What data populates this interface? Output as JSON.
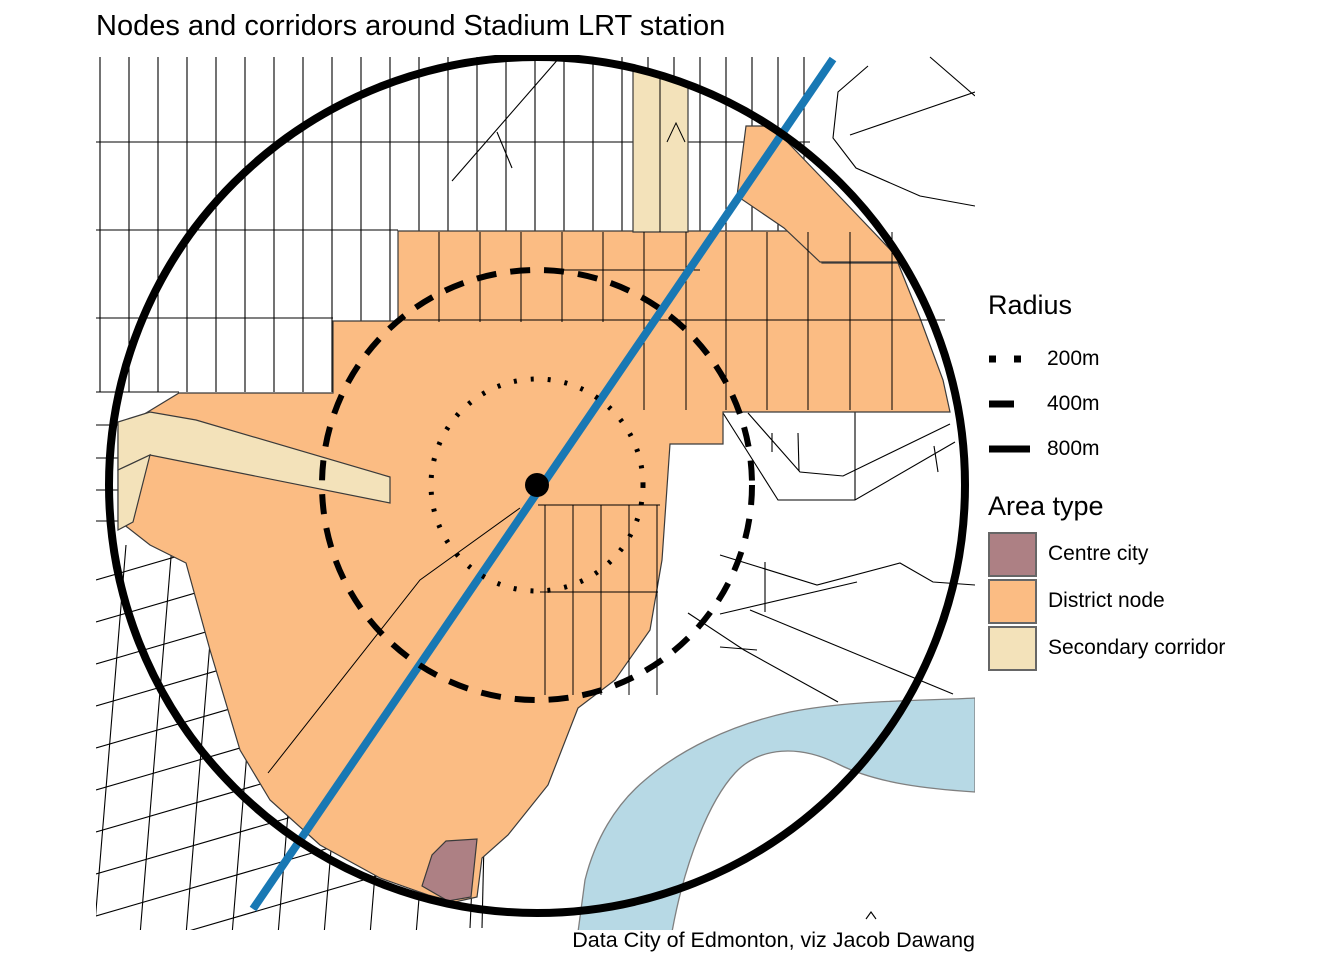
{
  "title": "Nodes and corridors around Stadium LRT station",
  "caption": "Data City of Edmonton, viz Jacob Dawang",
  "legend": {
    "radius": {
      "heading": "Radius",
      "items": [
        {
          "label": "200m",
          "style": "dotted"
        },
        {
          "label": "400m",
          "style": "dashed"
        },
        {
          "label": "800m",
          "style": "solid"
        }
      ]
    },
    "area": {
      "heading": "Area type",
      "items": [
        {
          "label": "Centre city",
          "color": "#ad8084"
        },
        {
          "label": "District node",
          "color": "#fbbc83"
        },
        {
          "label": "Secondary corridor",
          "color": "#f3e2ba"
        }
      ]
    }
  },
  "colors": {
    "district": "#fbbc83",
    "corridor": "#f3e2ba",
    "centre": "#ad8084",
    "river": "#b7d9e5",
    "river_border": "#808080",
    "lrt": "#1878b4",
    "streets": "#000000",
    "circle": "#000000",
    "border": "#3a3a3a"
  }
}
